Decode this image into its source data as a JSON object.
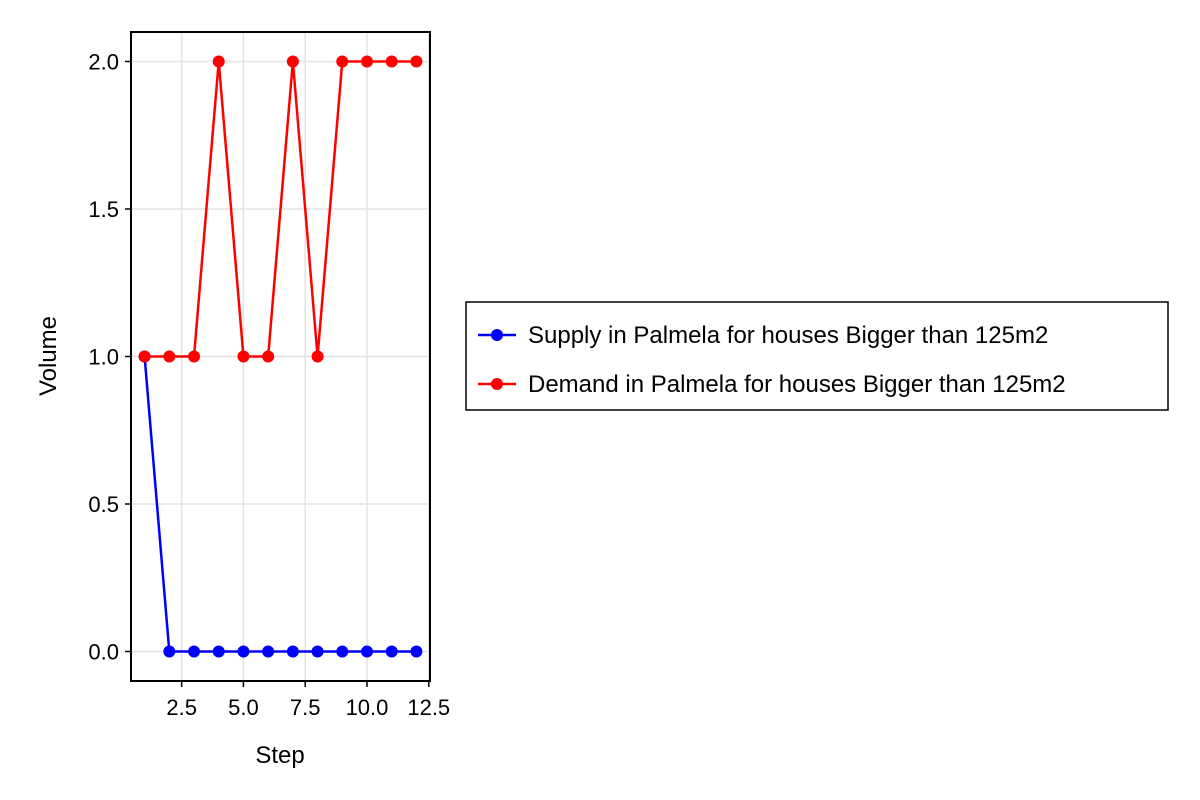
{
  "chart_data": {
    "type": "line",
    "xlabel": "Step",
    "ylabel": "Volume",
    "xlim": [
      0.45,
      12.55
    ],
    "ylim": [
      -0.1,
      2.1
    ],
    "xticks": [
      2.5,
      5.0,
      7.5,
      10.0,
      12.5
    ],
    "xtick_labels": [
      "2.5",
      "5.0",
      "7.5",
      "10.0",
      "12.5"
    ],
    "yticks": [
      0.0,
      0.5,
      1.0,
      1.5,
      2.0
    ],
    "ytick_labels": [
      "0.0",
      "0.5",
      "1.0",
      "1.5",
      "2.0"
    ],
    "grid": true,
    "legend_position": "right",
    "series": [
      {
        "name": "Supply in Palmela for houses Bigger than 125m2",
        "color": "#0000ff",
        "x": [
          1,
          2,
          3,
          4,
          5,
          6,
          7,
          8,
          9,
          10,
          11,
          12
        ],
        "y": [
          1,
          0,
          0,
          0,
          0,
          0,
          0,
          0,
          0,
          0,
          0,
          0
        ]
      },
      {
        "name": "Demand in Palmela for houses Bigger than 125m2",
        "color": "#ff0000",
        "x": [
          1,
          2,
          3,
          4,
          5,
          6,
          7,
          8,
          9,
          10,
          11,
          12
        ],
        "y": [
          1,
          1,
          1,
          2,
          1,
          1,
          2,
          1,
          2,
          2,
          2,
          2
        ]
      }
    ]
  }
}
